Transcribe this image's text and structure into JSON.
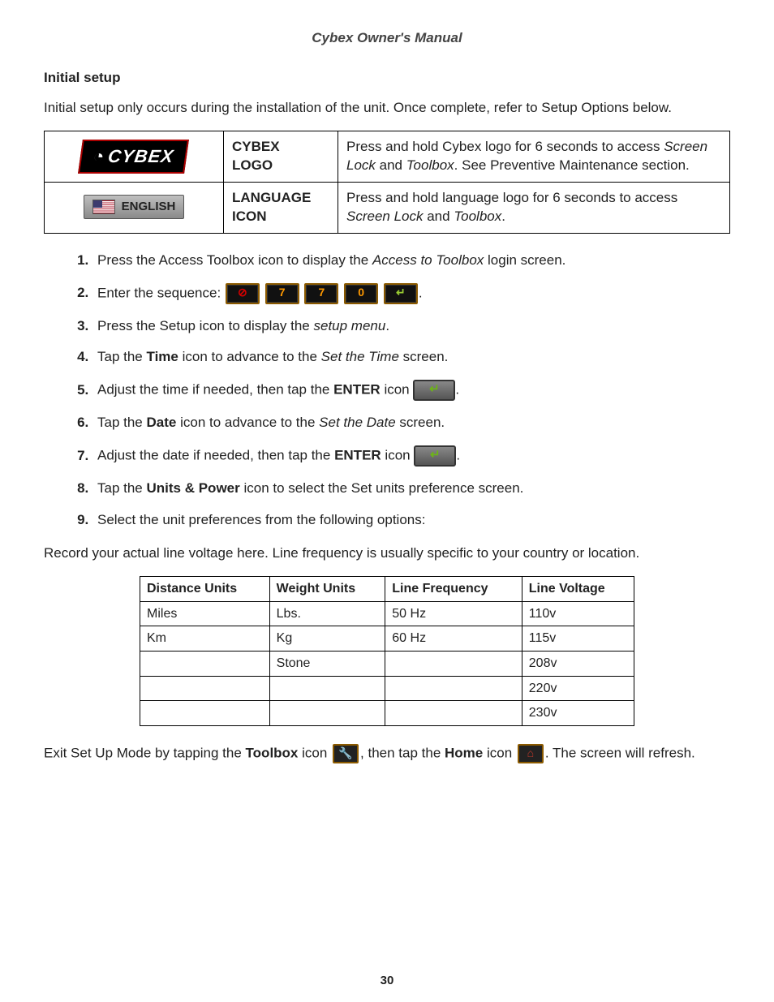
{
  "header": "Cybex Owner's Manual",
  "page_number": "30",
  "section_title": "Initial setup",
  "intro": "Initial setup only occurs during the installation of the unit. Once complete, refer to Setup Options below.",
  "icon_table": [
    {
      "badge_text": "CYBEX",
      "name_line1": "CYBEX",
      "name_line2": "LOGO",
      "desc_pre": "Press and hold Cybex logo for 6 seconds to access ",
      "desc_em1": "Screen Lock",
      "desc_mid": " and ",
      "desc_em2": "Toolbox",
      "desc_post": ". See Preventive Maintenance section."
    },
    {
      "badge_text": "ENGLISH",
      "name_line1": "LANGUAGE",
      "name_line2": "ICON",
      "desc_pre": "Press and hold language logo for 6 seconds to access ",
      "desc_em1": "Screen Lock",
      "desc_mid": " and ",
      "desc_em2": "Toolbox",
      "desc_post": "."
    }
  ],
  "sequence_keys": {
    "clear": "⊘",
    "seven": "7",
    "zero": "0",
    "enter": "↵"
  },
  "steps": {
    "s1_pre": "Press the Access Toolbox icon to display the ",
    "s1_em": "Access to Toolbox",
    "s1_post": " login screen.",
    "s2": "Enter the sequence: ",
    "s3_pre": "Press the Setup icon to display the ",
    "s3_em": "setup menu",
    "s3_post": ".",
    "s4_pre": "Tap the ",
    "s4_b": "Time",
    "s4_mid": " icon to advance to the ",
    "s4_em": "Set the Time",
    "s4_post": " screen.",
    "s5_pre": "Adjust the time if needed, then tap the ",
    "s5_b": "ENTER",
    "s5_mid": " icon ",
    "s5_post": ".",
    "s6_pre": "Tap the ",
    "s6_b": "Date",
    "s6_mid": " icon to advance to the ",
    "s6_em": "Set the Date",
    "s6_post": " screen.",
    "s7_pre": "Adjust the date if needed, then tap the ",
    "s7_b": "ENTER",
    "s7_mid": " icon ",
    "s7_post": ".",
    "s8_pre": "Tap the ",
    "s8_b": "Units & Power",
    "s8_post": " icon to select the Set units preference screen.",
    "s9": "Select the unit preferences from the following options:"
  },
  "record_note": "Record your actual line voltage here. Line frequency is usually specific to your country or location.",
  "units_table": {
    "headers": [
      "Distance Units",
      "Weight Units",
      "Line Frequency",
      "Line Voltage"
    ],
    "rows": [
      [
        "Miles",
        "Lbs.",
        "50 Hz",
        "110v"
      ],
      [
        "Km",
        "Kg",
        "60 Hz",
        "115v"
      ],
      [
        "",
        "Stone",
        "",
        "208v"
      ],
      [
        "",
        "",
        "",
        "220v"
      ],
      [
        "",
        "",
        "",
        "230v"
      ]
    ]
  },
  "exit": {
    "pre": "Exit Set Up Mode by tapping the ",
    "b1": "Toolbox",
    "mid1": " icon ",
    "mid2": ", then tap the ",
    "b2": "Home",
    "mid3": " icon ",
    "post": ". The screen will refresh."
  },
  "inline_icons": {
    "toolbox": "🔧",
    "home": "⌂",
    "enter": "↵"
  },
  "colors": {
    "text": "#222222",
    "border": "#000000",
    "key_bg": "#111111",
    "key_border": "#8b5a00",
    "key_green": "#9acd32",
    "key_orange": "#ff9900",
    "key_red": "#d40000",
    "badge_border": "#a00000"
  }
}
